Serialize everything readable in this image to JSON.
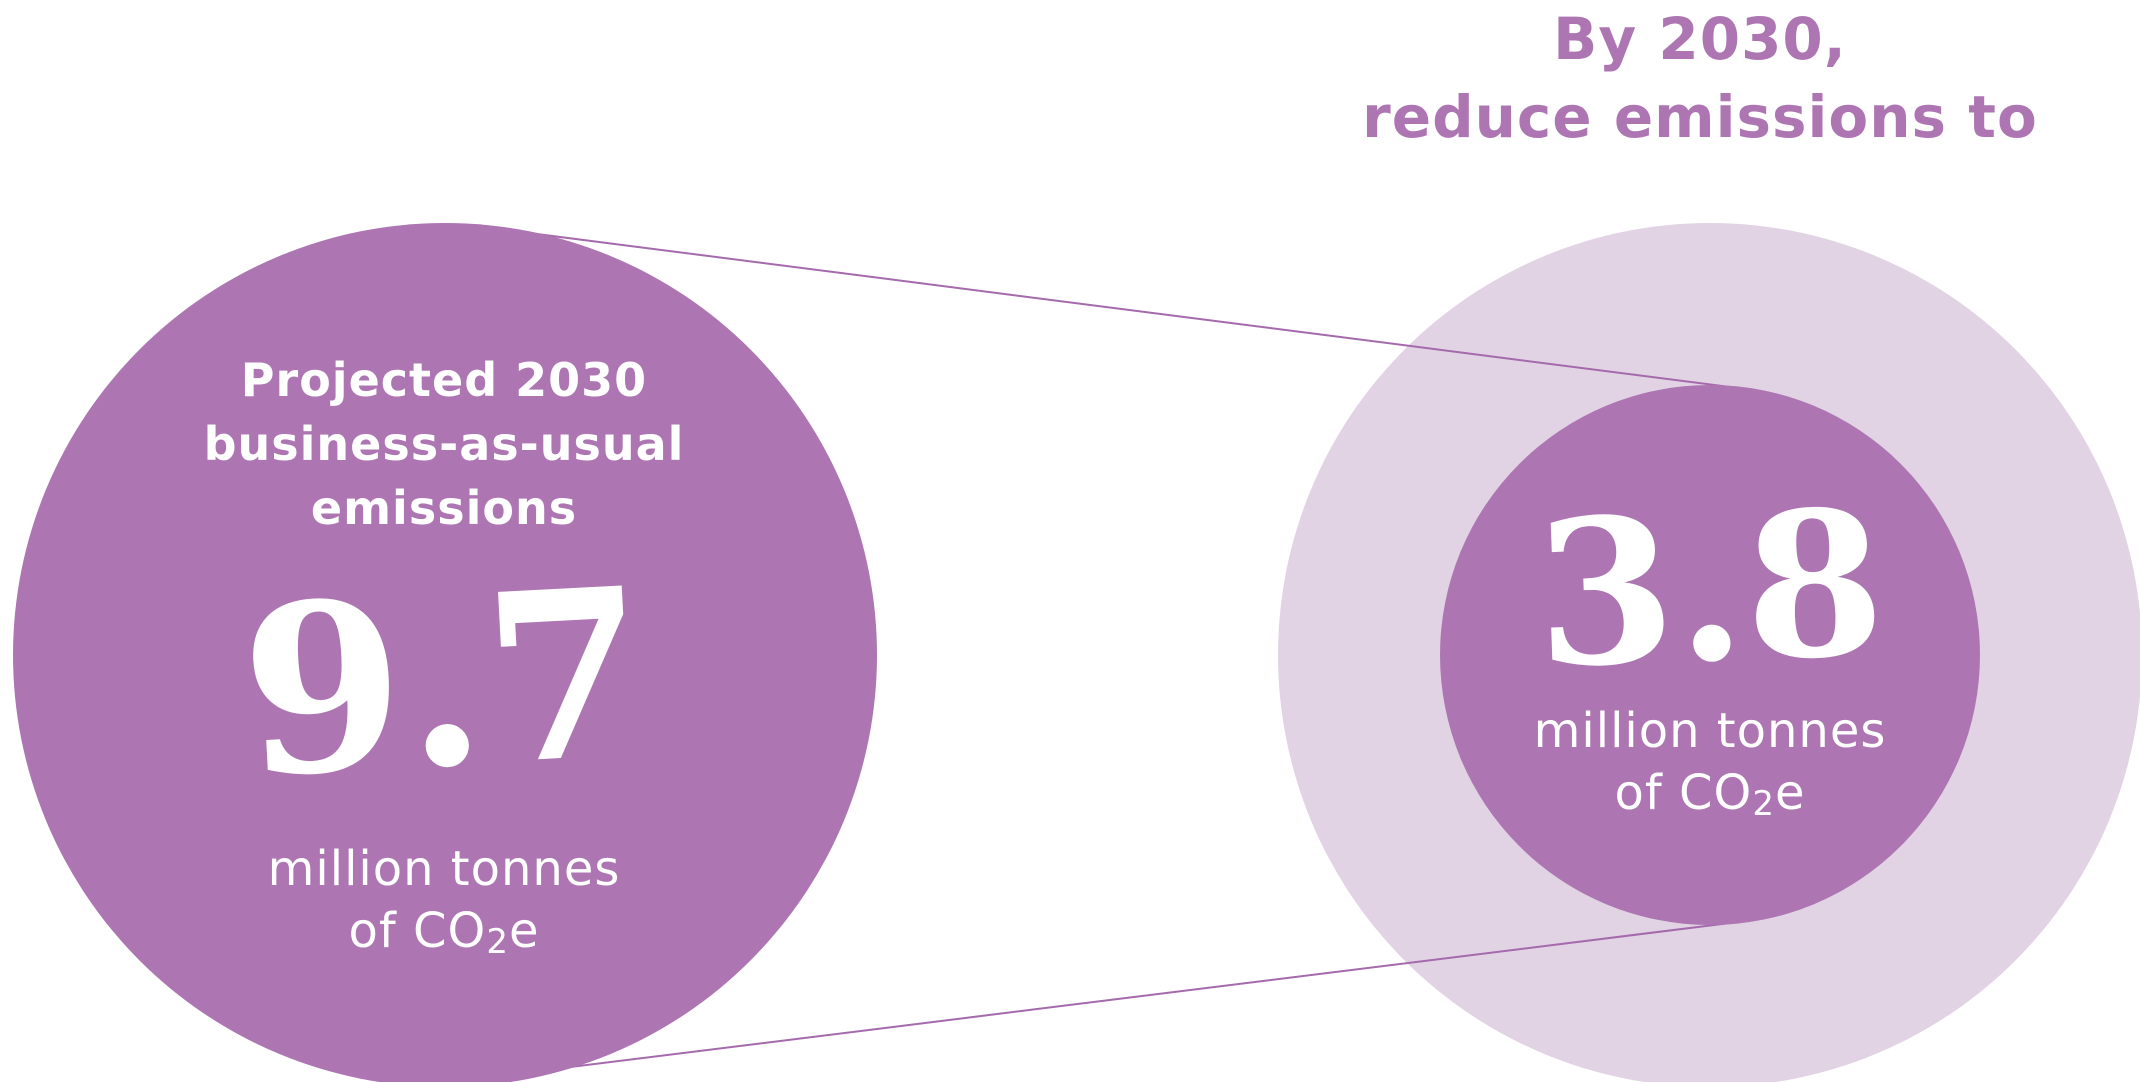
{
  "colors": {
    "main_circle": "#ad76b3",
    "outer_circle": "#e1d3e4",
    "connector_line": "#a46aab",
    "heading_text": "#ad76b3",
    "inner_text": "#ffffff"
  },
  "heading": {
    "line1": "By 2030,",
    "line2": "reduce emissions to"
  },
  "projected": {
    "label_line1": "Projected 2030",
    "label_line2": "business-as-usual",
    "label_line3": "emissions",
    "value": "9.7",
    "unit_line1": "million tonnes",
    "unit_prefix": "of CO",
    "unit_subscript": "2",
    "unit_suffix": "e"
  },
  "target": {
    "value": "3.8",
    "unit_line1": "million tonnes",
    "unit_prefix": "of CO",
    "unit_subscript": "2",
    "unit_suffix": "e"
  }
}
